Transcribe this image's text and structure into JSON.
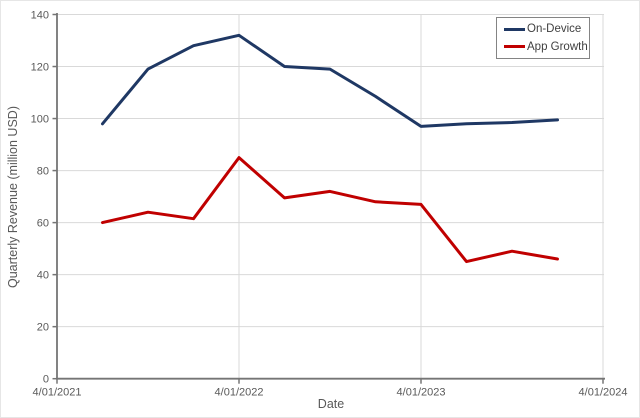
{
  "chart_data": {
    "type": "line",
    "title": "",
    "xlabel": "Date",
    "ylabel": "Quarterly Revenue (million USD)",
    "ylim": [
      0,
      140
    ],
    "y_ticks": [
      0,
      20,
      40,
      60,
      80,
      100,
      120,
      140
    ],
    "x_tick_labels": [
      "4/01/2021",
      "4/01/2022",
      "4/01/2023",
      "4/01/2024"
    ],
    "grid": true,
    "legend_position": "top-right",
    "x": [
      "7/01/2021",
      "10/01/2021",
      "1/01/2022",
      "4/01/2022",
      "7/01/2022",
      "10/01/2022",
      "1/01/2023",
      "4/01/2023",
      "7/01/2023",
      "10/01/2023",
      "1/01/2024"
    ],
    "series": [
      {
        "name": "On-Device",
        "color": "#1F3864",
        "values": [
          98,
          119,
          128,
          132,
          120,
          119,
          108.5,
          97,
          98,
          98.5,
          99.5
        ]
      },
      {
        "name": "App Growth",
        "color": "#C00000",
        "values": [
          60,
          64,
          61.5,
          85,
          69.5,
          72,
          68,
          67,
          45,
          49,
          46
        ]
      }
    ]
  },
  "colors": {
    "gridline": "#D9D9D9",
    "axis_line": "#757575",
    "tick_label": "#595959",
    "legend_border": "#848484",
    "legend_text": "#404040",
    "background": "#FFFFFF"
  }
}
